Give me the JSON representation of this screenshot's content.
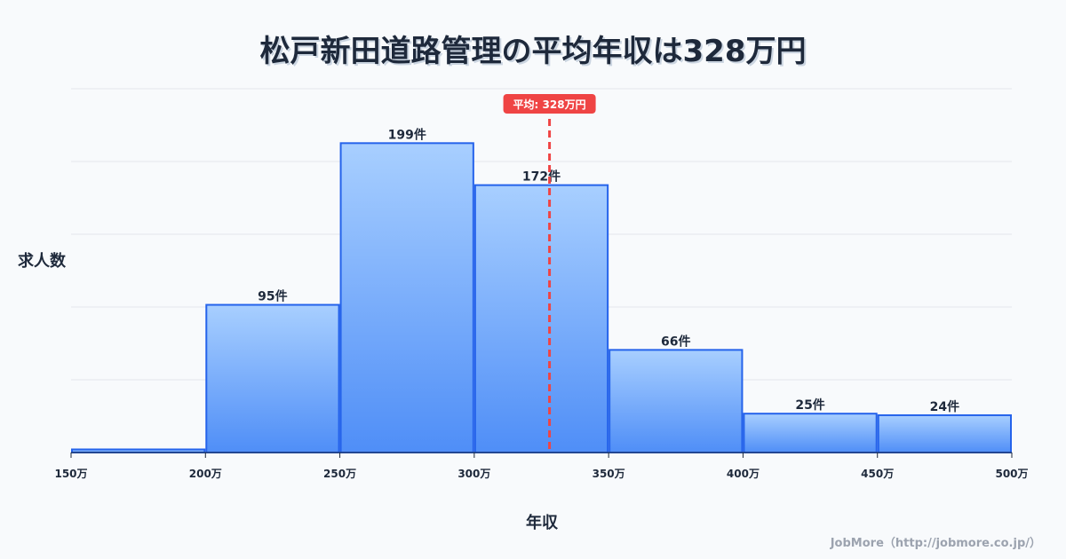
{
  "chart_data": {
    "type": "bar",
    "title": "松戸新田道路管理の平均年収は328万円",
    "xlabel": "年収",
    "ylabel": "求人数",
    "bin_edges": [
      150,
      200,
      250,
      300,
      350,
      400,
      450,
      500
    ],
    "x_tick_labels": [
      "150万",
      "200万",
      "250万",
      "300万",
      "350万",
      "400万",
      "450万",
      "500万"
    ],
    "values": [
      2,
      95,
      199,
      172,
      66,
      25,
      24
    ],
    "data_labels": [
      "",
      "95件",
      "199件",
      "172件",
      "66件",
      "25件",
      "24件"
    ],
    "xlim": [
      150,
      500
    ],
    "ylim": [
      0,
      234
    ],
    "grid": true,
    "mean": {
      "value": 328,
      "label": "平均: 328万円",
      "color": "#ef4444"
    },
    "bar_color": "#2563eb"
  },
  "footer": "JobMore（http://jobmore.co.jp/）"
}
